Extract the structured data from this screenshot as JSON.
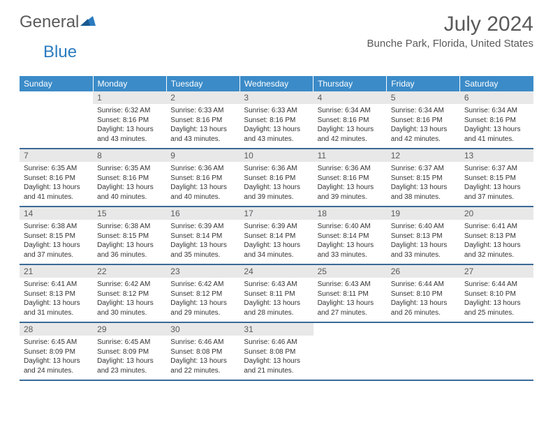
{
  "logo": {
    "text_general": "General",
    "text_blue": "Blue"
  },
  "header": {
    "month_title": "July 2024",
    "location": "Bunche Park, Florida, United States"
  },
  "colors": {
    "header_bg": "#3b8bc8",
    "header_text": "#ffffff",
    "day_num_bg": "#e8e8e8",
    "text_gray": "#5a5a5a",
    "row_border": "#3b6a96",
    "logo_blue": "#2b7bbf"
  },
  "weekdays": [
    "Sunday",
    "Monday",
    "Tuesday",
    "Wednesday",
    "Thursday",
    "Friday",
    "Saturday"
  ],
  "first_day_offset": 1,
  "days": [
    {
      "n": 1,
      "sunrise": "6:32 AM",
      "sunset": "8:16 PM",
      "daylight": "13 hours and 43 minutes."
    },
    {
      "n": 2,
      "sunrise": "6:33 AM",
      "sunset": "8:16 PM",
      "daylight": "13 hours and 43 minutes."
    },
    {
      "n": 3,
      "sunrise": "6:33 AM",
      "sunset": "8:16 PM",
      "daylight": "13 hours and 43 minutes."
    },
    {
      "n": 4,
      "sunrise": "6:34 AM",
      "sunset": "8:16 PM",
      "daylight": "13 hours and 42 minutes."
    },
    {
      "n": 5,
      "sunrise": "6:34 AM",
      "sunset": "8:16 PM",
      "daylight": "13 hours and 42 minutes."
    },
    {
      "n": 6,
      "sunrise": "6:34 AM",
      "sunset": "8:16 PM",
      "daylight": "13 hours and 41 minutes."
    },
    {
      "n": 7,
      "sunrise": "6:35 AM",
      "sunset": "8:16 PM",
      "daylight": "13 hours and 41 minutes."
    },
    {
      "n": 8,
      "sunrise": "6:35 AM",
      "sunset": "8:16 PM",
      "daylight": "13 hours and 40 minutes."
    },
    {
      "n": 9,
      "sunrise": "6:36 AM",
      "sunset": "8:16 PM",
      "daylight": "13 hours and 40 minutes."
    },
    {
      "n": 10,
      "sunrise": "6:36 AM",
      "sunset": "8:16 PM",
      "daylight": "13 hours and 39 minutes."
    },
    {
      "n": 11,
      "sunrise": "6:36 AM",
      "sunset": "8:16 PM",
      "daylight": "13 hours and 39 minutes."
    },
    {
      "n": 12,
      "sunrise": "6:37 AM",
      "sunset": "8:15 PM",
      "daylight": "13 hours and 38 minutes."
    },
    {
      "n": 13,
      "sunrise": "6:37 AM",
      "sunset": "8:15 PM",
      "daylight": "13 hours and 37 minutes."
    },
    {
      "n": 14,
      "sunrise": "6:38 AM",
      "sunset": "8:15 PM",
      "daylight": "13 hours and 37 minutes."
    },
    {
      "n": 15,
      "sunrise": "6:38 AM",
      "sunset": "8:15 PM",
      "daylight": "13 hours and 36 minutes."
    },
    {
      "n": 16,
      "sunrise": "6:39 AM",
      "sunset": "8:14 PM",
      "daylight": "13 hours and 35 minutes."
    },
    {
      "n": 17,
      "sunrise": "6:39 AM",
      "sunset": "8:14 PM",
      "daylight": "13 hours and 34 minutes."
    },
    {
      "n": 18,
      "sunrise": "6:40 AM",
      "sunset": "8:14 PM",
      "daylight": "13 hours and 33 minutes."
    },
    {
      "n": 19,
      "sunrise": "6:40 AM",
      "sunset": "8:13 PM",
      "daylight": "13 hours and 33 minutes."
    },
    {
      "n": 20,
      "sunrise": "6:41 AM",
      "sunset": "8:13 PM",
      "daylight": "13 hours and 32 minutes."
    },
    {
      "n": 21,
      "sunrise": "6:41 AM",
      "sunset": "8:13 PM",
      "daylight": "13 hours and 31 minutes."
    },
    {
      "n": 22,
      "sunrise": "6:42 AM",
      "sunset": "8:12 PM",
      "daylight": "13 hours and 30 minutes."
    },
    {
      "n": 23,
      "sunrise": "6:42 AM",
      "sunset": "8:12 PM",
      "daylight": "13 hours and 29 minutes."
    },
    {
      "n": 24,
      "sunrise": "6:43 AM",
      "sunset": "8:11 PM",
      "daylight": "13 hours and 28 minutes."
    },
    {
      "n": 25,
      "sunrise": "6:43 AM",
      "sunset": "8:11 PM",
      "daylight": "13 hours and 27 minutes."
    },
    {
      "n": 26,
      "sunrise": "6:44 AM",
      "sunset": "8:10 PM",
      "daylight": "13 hours and 26 minutes."
    },
    {
      "n": 27,
      "sunrise": "6:44 AM",
      "sunset": "8:10 PM",
      "daylight": "13 hours and 25 minutes."
    },
    {
      "n": 28,
      "sunrise": "6:45 AM",
      "sunset": "8:09 PM",
      "daylight": "13 hours and 24 minutes."
    },
    {
      "n": 29,
      "sunrise": "6:45 AM",
      "sunset": "8:09 PM",
      "daylight": "13 hours and 23 minutes."
    },
    {
      "n": 30,
      "sunrise": "6:46 AM",
      "sunset": "8:08 PM",
      "daylight": "13 hours and 22 minutes."
    },
    {
      "n": 31,
      "sunrise": "6:46 AM",
      "sunset": "8:08 PM",
      "daylight": "13 hours and 21 minutes."
    }
  ],
  "labels": {
    "sunrise": "Sunrise: ",
    "sunset": "Sunset: ",
    "daylight": "Daylight: "
  }
}
